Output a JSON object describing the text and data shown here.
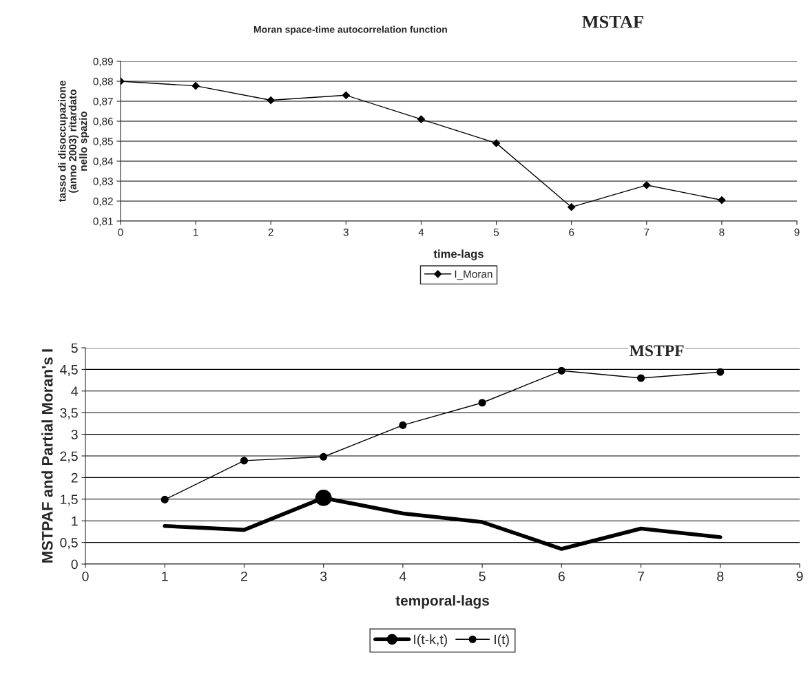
{
  "chart_data": [
    {
      "type": "line",
      "title": "Moran space-time autocorrelation function",
      "annotations": [
        "MSTAF"
      ],
      "xlabel": "time-lags",
      "ylabel": "tasso di disoccupazione (anno 2003) ritardato nello spazio",
      "x": [
        0,
        1,
        2,
        3,
        4,
        5,
        6,
        7,
        8
      ],
      "series": [
        {
          "name": "I_Moran",
          "color": "#000000",
          "marker": "diamond",
          "values": [
            0.88,
            0.8777,
            0.8705,
            0.873,
            0.861,
            0.849,
            0.817,
            0.828,
            0.8205
          ]
        }
      ],
      "xlim": [
        0,
        9
      ],
      "xticks": [
        0,
        1,
        2,
        3,
        4,
        5,
        6,
        7,
        8,
        9
      ],
      "ylim": [
        0.81,
        0.89
      ],
      "yticks": [
        {
          "value": 0.81,
          "label": "0,81"
        },
        {
          "value": 0.82,
          "label": "0,82"
        },
        {
          "value": 0.83,
          "label": "0,83"
        },
        {
          "value": 0.84,
          "label": "0,84"
        },
        {
          "value": 0.85,
          "label": "0,85"
        },
        {
          "value": 0.86,
          "label": "0,86"
        },
        {
          "value": 0.87,
          "label": "0,87"
        },
        {
          "value": 0.88,
          "label": "0,88"
        },
        {
          "value": 0.89,
          "label": "0,89"
        }
      ],
      "grid": "y",
      "legend": "bottom",
      "line_style": "solid"
    },
    {
      "type": "line",
      "annotations": [
        "MSTPF"
      ],
      "xlabel": "temporal-lags",
      "ylabel": "MSTPAF and Partial Moran's I",
      "x": [
        1,
        2,
        3,
        4,
        5,
        6,
        7,
        8
      ],
      "series": [
        {
          "name": "I(t-k,t)",
          "color": "#000000",
          "marker": "none",
          "values": [
            0.88,
            0.79,
            1.53,
            1.17,
            0.97,
            0.35,
            0.82,
            0.62
          ]
        },
        {
          "type": "scatter",
          "color": "#000000",
          "marker": "circle",
          "x": [
            3
          ],
          "values": [
            1.53
          ]
        },
        {
          "name": "I(t)",
          "color": "#000000",
          "marker": "circle",
          "values": [
            1.49,
            2.39,
            2.48,
            3.21,
            3.73,
            4.47,
            4.3,
            4.44
          ]
        }
      ],
      "xlim": [
        0,
        9
      ],
      "xticks": [
        0,
        1,
        2,
        3,
        4,
        5,
        6,
        7,
        8,
        9
      ],
      "ylim": [
        0,
        5
      ],
      "yticks": [
        0,
        {
          "value": 0.5,
          "label": "0,5"
        },
        1,
        {
          "value": 1.5,
          "label": "1,5"
        },
        2,
        {
          "value": 2.5,
          "label": "2,5"
        },
        3,
        {
          "value": 3.5,
          "label": "3,5"
        },
        4,
        {
          "value": 4.5,
          "label": "4,5"
        },
        5
      ],
      "grid": "y",
      "legend": "bottom",
      "line_style": "solid"
    }
  ]
}
